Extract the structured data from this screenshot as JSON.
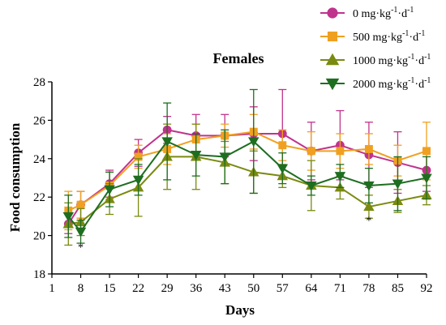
{
  "chart_data": {
    "type": "line",
    "title": "Females",
    "xlabel": "Days",
    "ylabel": "Food consumption",
    "x": [
      5,
      8,
      15,
      22,
      29,
      36,
      43,
      50,
      57,
      64,
      71,
      78,
      85,
      92
    ],
    "x_ticks": [
      1,
      8,
      15,
      22,
      29,
      36,
      43,
      50,
      57,
      64,
      71,
      78,
      85,
      92
    ],
    "y_ticks": [
      18,
      20,
      22,
      24,
      26,
      28
    ],
    "xlim": [
      1,
      92
    ],
    "ylim": [
      18,
      28
    ],
    "grid": false,
    "legend_position": "top-right",
    "series": [
      {
        "name": "0 mg·kg",
        "name_sup1": "-1",
        "name_mid": "·d",
        "name_sup2": "-1",
        "color": "#c0338c",
        "marker": "circle",
        "values": [
          20.6,
          21.6,
          22.7,
          24.3,
          25.5,
          25.2,
          25.2,
          25.3,
          25.3,
          24.4,
          24.7,
          24.2,
          23.8,
          23.4
        ],
        "errors": [
          0.5,
          0.7,
          0.7,
          0.7,
          0.7,
          1.1,
          1.1,
          1.4,
          2.3,
          1.5,
          1.8,
          1.7,
          1.6,
          1.1
        ]
      },
      {
        "name": "500 mg·kg",
        "name_sup1": "-1",
        "name_mid": "·d",
        "name_sup2": "-1",
        "color": "#f0a020",
        "marker": "square",
        "values": [
          21.3,
          21.6,
          22.6,
          24.1,
          24.5,
          25.0,
          25.2,
          25.4,
          24.7,
          24.4,
          24.4,
          24.5,
          23.9,
          24.4
        ],
        "errors": [
          1.0,
          0.7,
          0.7,
          0.6,
          0.8,
          0.8,
          0.6,
          0.9,
          0.8,
          1.0,
          0.9,
          0.8,
          0.8,
          1.5
        ]
      },
      {
        "name": "1000 mg·kg",
        "name_sup1": "-1",
        "name_mid": "·d",
        "name_sup2": "-1",
        "color": "#7a8a10",
        "marker": "triangle-up",
        "values": [
          20.6,
          20.7,
          21.9,
          22.5,
          24.1,
          24.1,
          23.8,
          23.3,
          23.1,
          22.6,
          22.5,
          21.5,
          21.8,
          22.1
        ],
        "errors": [
          1.1,
          0.7,
          0.8,
          1.5,
          1.7,
          1.7,
          1.1,
          1.1,
          0.6,
          1.3,
          0.6,
          0.6,
          0.6,
          0.5
        ]
      },
      {
        "name": "2000 mg·kg",
        "name_sup1": "-1",
        "name_mid": "·d",
        "name_sup2": "-1",
        "color": "#1e6e20",
        "marker": "triangle-down",
        "values": [
          21.0,
          20.2,
          22.4,
          22.9,
          24.9,
          24.2,
          24.1,
          24.9,
          23.5,
          22.6,
          23.1,
          22.6,
          22.7,
          23.0
        ],
        "errors": [
          1.1,
          0.6,
          0.9,
          0.8,
          2.0,
          1.1,
          1.4,
          2.7,
          0.8,
          0.5,
          0.6,
          0.9,
          1.4,
          1.1
        ]
      }
    ],
    "annotations": [
      {
        "text": "*",
        "x": 8,
        "y": 19.2
      },
      {
        "text": "*",
        "x": 78,
        "y": 20.6
      }
    ]
  }
}
